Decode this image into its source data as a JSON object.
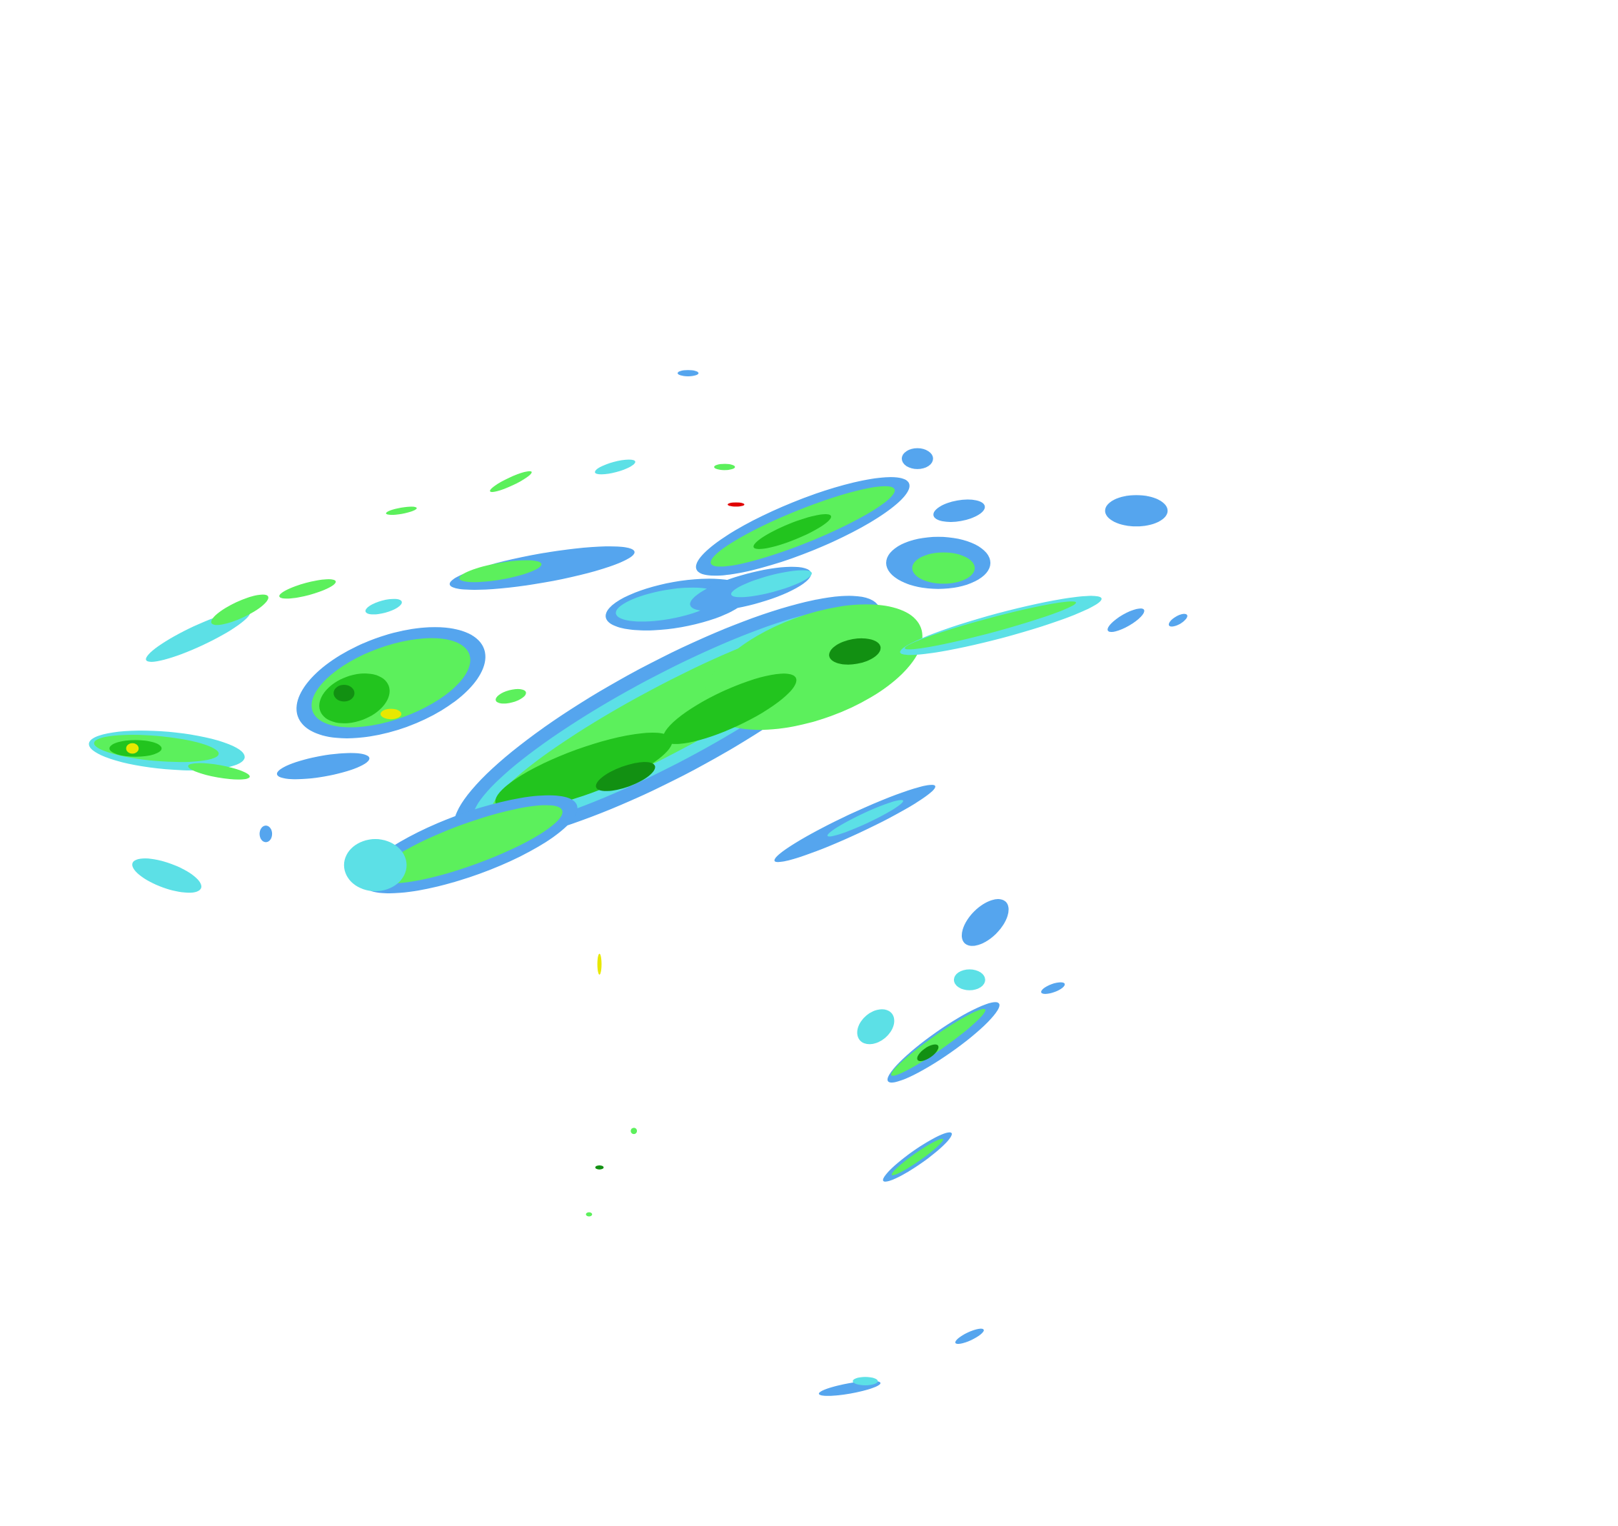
{
  "map": {
    "type": "weather-radar-reflectivity",
    "background": "#ffffff",
    "palette": {
      "light": "#55a5ee",
      "light_moderate": "#5ce0e6",
      "moderate": "#5cf05c",
      "moderate_heavy": "#22c41e",
      "heavy": "#129012",
      "very_heavy": "#e8e800",
      "extreme": "#e00000"
    }
  }
}
